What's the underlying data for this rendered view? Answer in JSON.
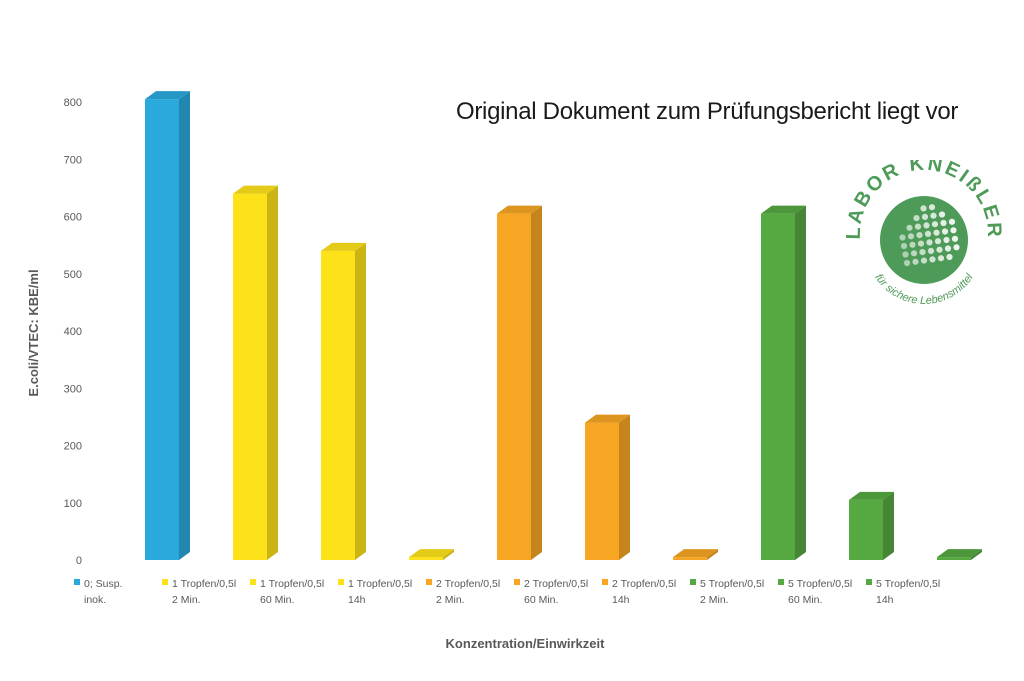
{
  "header": {
    "note": "Original Dokument zum Prüfungsbericht liegt vor"
  },
  "logo": {
    "title": "LABOR KNEIßLER",
    "subtitle": "für sichere Lebensmittel",
    "color": "#4e9a58",
    "icon": "dot-grid-arrow-icon"
  },
  "chart_data": {
    "type": "bar",
    "style": "3d",
    "title": "",
    "xlabel": "Konzentration/Einwirkzeit",
    "ylabel": "E.coli/VTEC: KBE/ml",
    "ylim": [
      0,
      800
    ],
    "yticks": [
      0,
      100,
      200,
      300,
      400,
      500,
      600,
      700,
      800
    ],
    "grid": false,
    "legend": "bottom (category labels with color markers)",
    "categories": [
      {
        "line1": "0; Susp.",
        "line2": "inok."
      },
      {
        "line1": "1 Tropfen/0,5l",
        "line2": "2 Min."
      },
      {
        "line1": "1 Tropfen/0,5l",
        "line2": "60 Min."
      },
      {
        "line1": "1 Tropfen/0,5l",
        "line2": "14h"
      },
      {
        "line1": "2 Tropfen/0,5l",
        "line2": "2 Min."
      },
      {
        "line1": "2 Tropfen/0,5l",
        "line2": "60 Min."
      },
      {
        "line1": "2 Tropfen/0,5l",
        "line2": "14h"
      },
      {
        "line1": "5 Tropfen/0,5l",
        "line2": "2 Min."
      },
      {
        "line1": "5 Tropfen/0,5l",
        "line2": "60 Min."
      },
      {
        "line1": "5 Tropfen/0,5l",
        "line2": "14h"
      }
    ],
    "values": [
      805,
      640,
      540,
      5,
      605,
      240,
      5,
      605,
      105,
      5
    ],
    "colors": [
      "#2aa9dc",
      "#fde21a",
      "#fde21a",
      "#fde21a",
      "#f6a623",
      "#f6a623",
      "#f6a623",
      "#56a841",
      "#56a841",
      "#56a841"
    ]
  }
}
